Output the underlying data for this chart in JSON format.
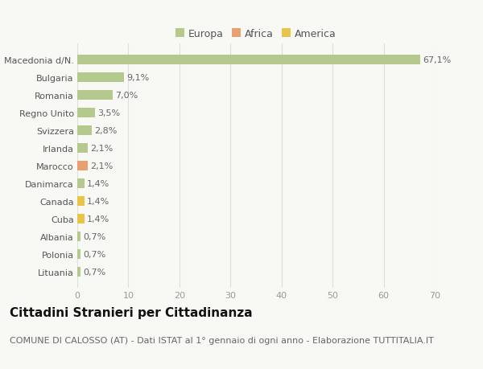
{
  "categories": [
    "Lituania",
    "Polonia",
    "Albania",
    "Cuba",
    "Canada",
    "Danimarca",
    "Marocco",
    "Irlanda",
    "Svizzera",
    "Regno Unito",
    "Romania",
    "Bulgaria",
    "Macedonia d/N."
  ],
  "values": [
    0.7,
    0.7,
    0.7,
    1.4,
    1.4,
    1.4,
    2.1,
    2.1,
    2.8,
    3.5,
    7.0,
    9.1,
    67.1
  ],
  "labels": [
    "0,7%",
    "0,7%",
    "0,7%",
    "1,4%",
    "1,4%",
    "1,4%",
    "2,1%",
    "2,1%",
    "2,8%",
    "3,5%",
    "7,0%",
    "9,1%",
    "67,1%"
  ],
  "colors": [
    "#b5c98e",
    "#b5c98e",
    "#b5c98e",
    "#e8c44a",
    "#e8c44a",
    "#b5c98e",
    "#e8a070",
    "#b5c98e",
    "#b5c98e",
    "#b5c98e",
    "#b5c98e",
    "#b5c98e",
    "#b5c98e"
  ],
  "legend_labels": [
    "Europa",
    "Africa",
    "America"
  ],
  "legend_colors": [
    "#b5c98e",
    "#e8a070",
    "#e8c44a"
  ],
  "title": "Cittadini Stranieri per Cittadinanza",
  "subtitle": "COMUNE DI CALOSSO (AT) - Dati ISTAT al 1° gennaio di ogni anno - Elaborazione TUTTITALIA.IT",
  "xlim": [
    0,
    70
  ],
  "xticks": [
    0,
    10,
    20,
    30,
    40,
    50,
    60,
    70
  ],
  "background_color": "#f8f8f5",
  "grid_color": "#e0e0d8",
  "bar_height": 0.55,
  "title_fontsize": 11,
  "subtitle_fontsize": 8,
  "label_fontsize": 8,
  "tick_fontsize": 8,
  "legend_fontsize": 9
}
